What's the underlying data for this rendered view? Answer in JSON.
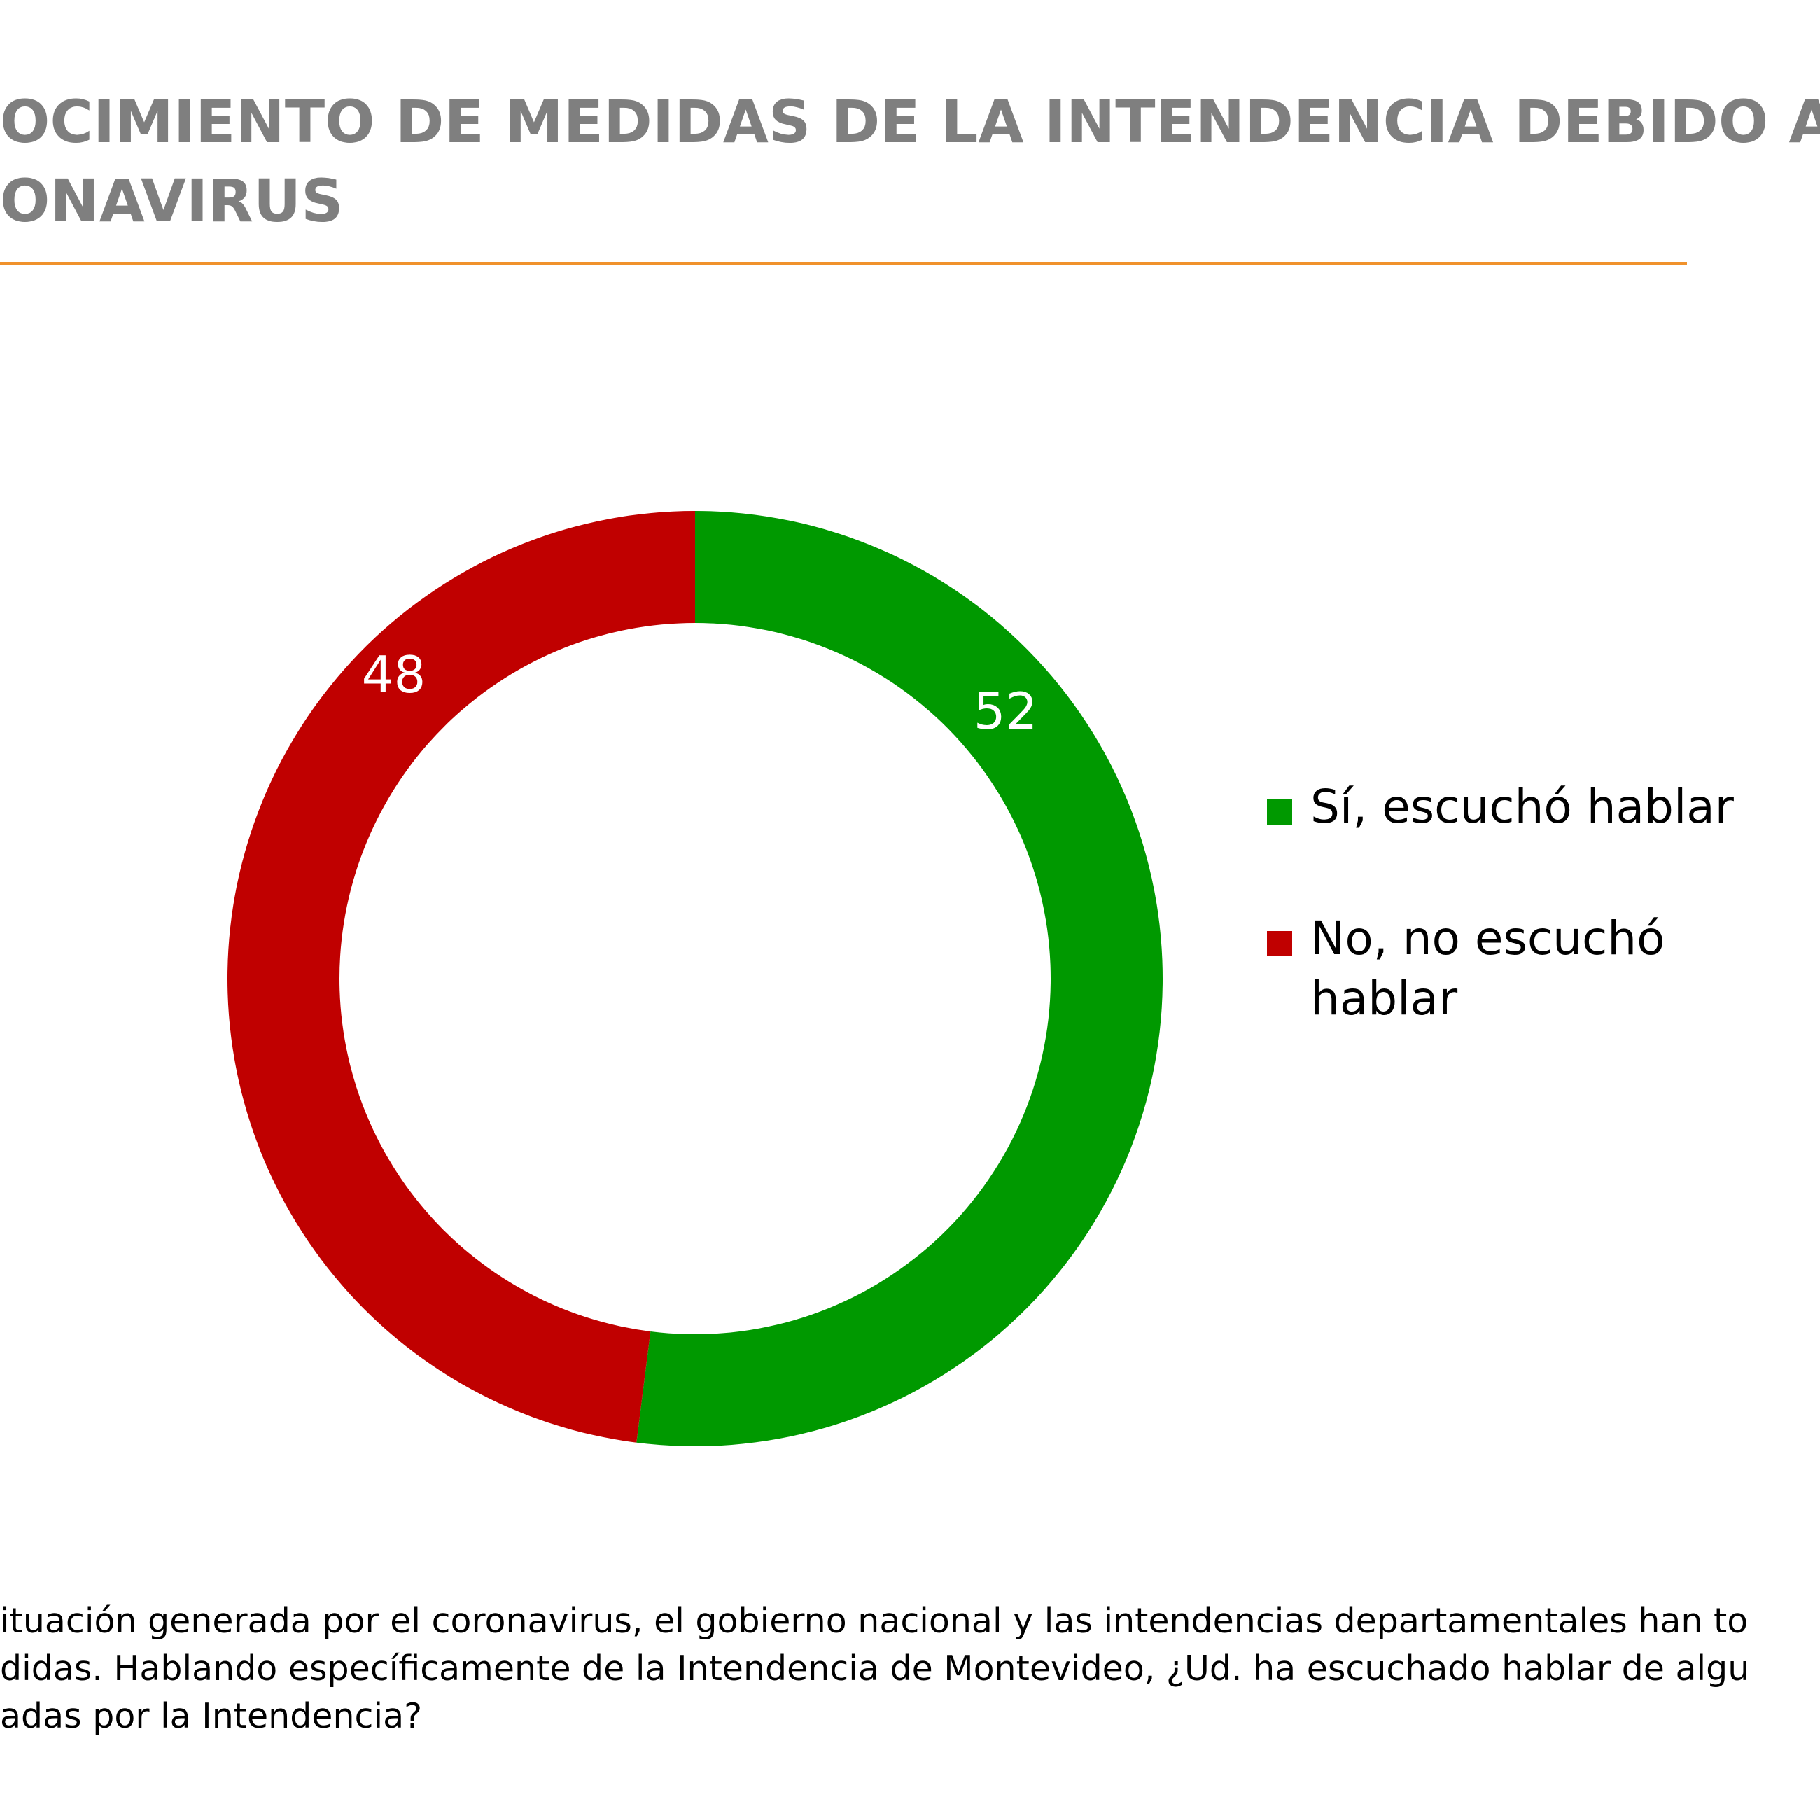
{
  "title": {
    "line1": "OCIMIENTO DE MEDIDAS DE LA INTENDENCIA DEBIDO AL",
    "line2": "ONAVIRUS"
  },
  "chart_data": {
    "type": "pie",
    "style": "donut",
    "title": "OCIMIENTO DE MEDIDAS DE LA INTENDENCIA DEBIDO AL ONAVIRUS",
    "legend_position": "right",
    "slices": [
      {
        "label": "Sí, escuchó hablar",
        "value": 52,
        "color": "#009900"
      },
      {
        "label": "No, no  escuchó hablar",
        "value": 48,
        "color": "#c00000"
      }
    ]
  },
  "legend": {
    "items": [
      {
        "label": "Sí, escuchó hablar",
        "color": "#009900"
      },
      {
        "label": "No, no  escuchó hablar",
        "color": "#c00000"
      }
    ]
  },
  "question": {
    "line1": "ituación generada por el coronavirus, el gobierno nacional y las intendencias departamentales han to",
    "line2": "didas. Hablando específicamente de la Intendencia de Montevideo, ¿Ud. ha escuchado hablar de algu",
    "line3": "adas por la Intendencia?"
  },
  "colors": {
    "title": "#7f7f7f",
    "rule": "#f0922c",
    "yes": "#009900",
    "no": "#c00000"
  }
}
